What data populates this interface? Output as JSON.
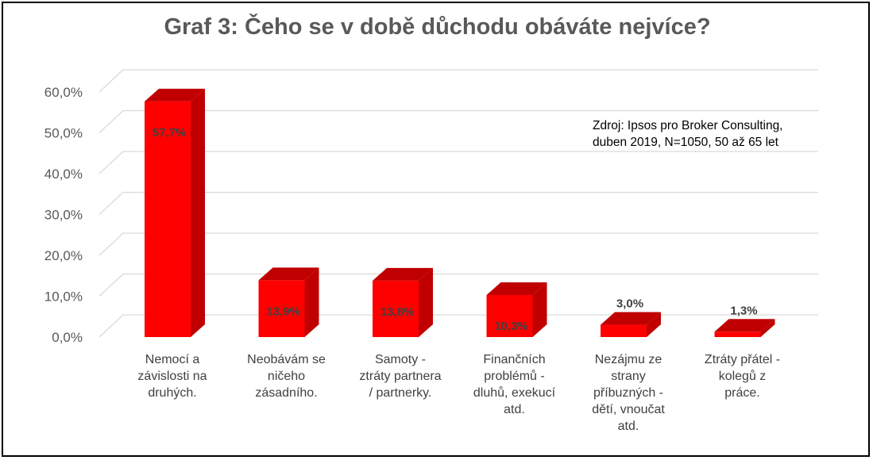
{
  "chart_data": {
    "type": "bar",
    "title": "Graf 3: Čeho se v době důchodu obáváte nejvíce?",
    "xlabel": "",
    "ylabel": "",
    "ylim": [
      0,
      60
    ],
    "yticks": [
      0,
      10,
      20,
      30,
      40,
      50,
      60
    ],
    "ytick_labels": [
      "0,0%",
      "10,0%",
      "20,0%",
      "30,0%",
      "40,0%",
      "50,0%",
      "60,0%"
    ],
    "categories": [
      [
        "Nemocí a",
        "závislosti na",
        "druhých."
      ],
      [
        "Neobávám se",
        "ničeho",
        "zásadního."
      ],
      [
        "Samoty -",
        "ztráty partnera",
        "/ partnerky."
      ],
      [
        "Finančních",
        "problémů -",
        "dluhů, exekucí",
        "atd."
      ],
      [
        "Nezájmu ze",
        "strany",
        "příbuzných -",
        "dětí, vnoučat",
        "atd."
      ],
      [
        "Ztráty přátel -",
        "kolegů z",
        "práce."
      ]
    ],
    "values": [
      57.7,
      13.9,
      13.8,
      10.3,
      3.0,
      1.3
    ],
    "data_labels": [
      "57,7%",
      "13,9%",
      "13,8%",
      "10,3%",
      "3,0%",
      "1,3%"
    ],
    "annotation": [
      "Zdroj: Ipsos pro Broker Consulting,",
      "duben 2019, N=1050, 50 až 65 let"
    ],
    "grid": true,
    "legend": "none",
    "bar_color": "#ff0000",
    "bar_side_color": "#c00000"
  }
}
